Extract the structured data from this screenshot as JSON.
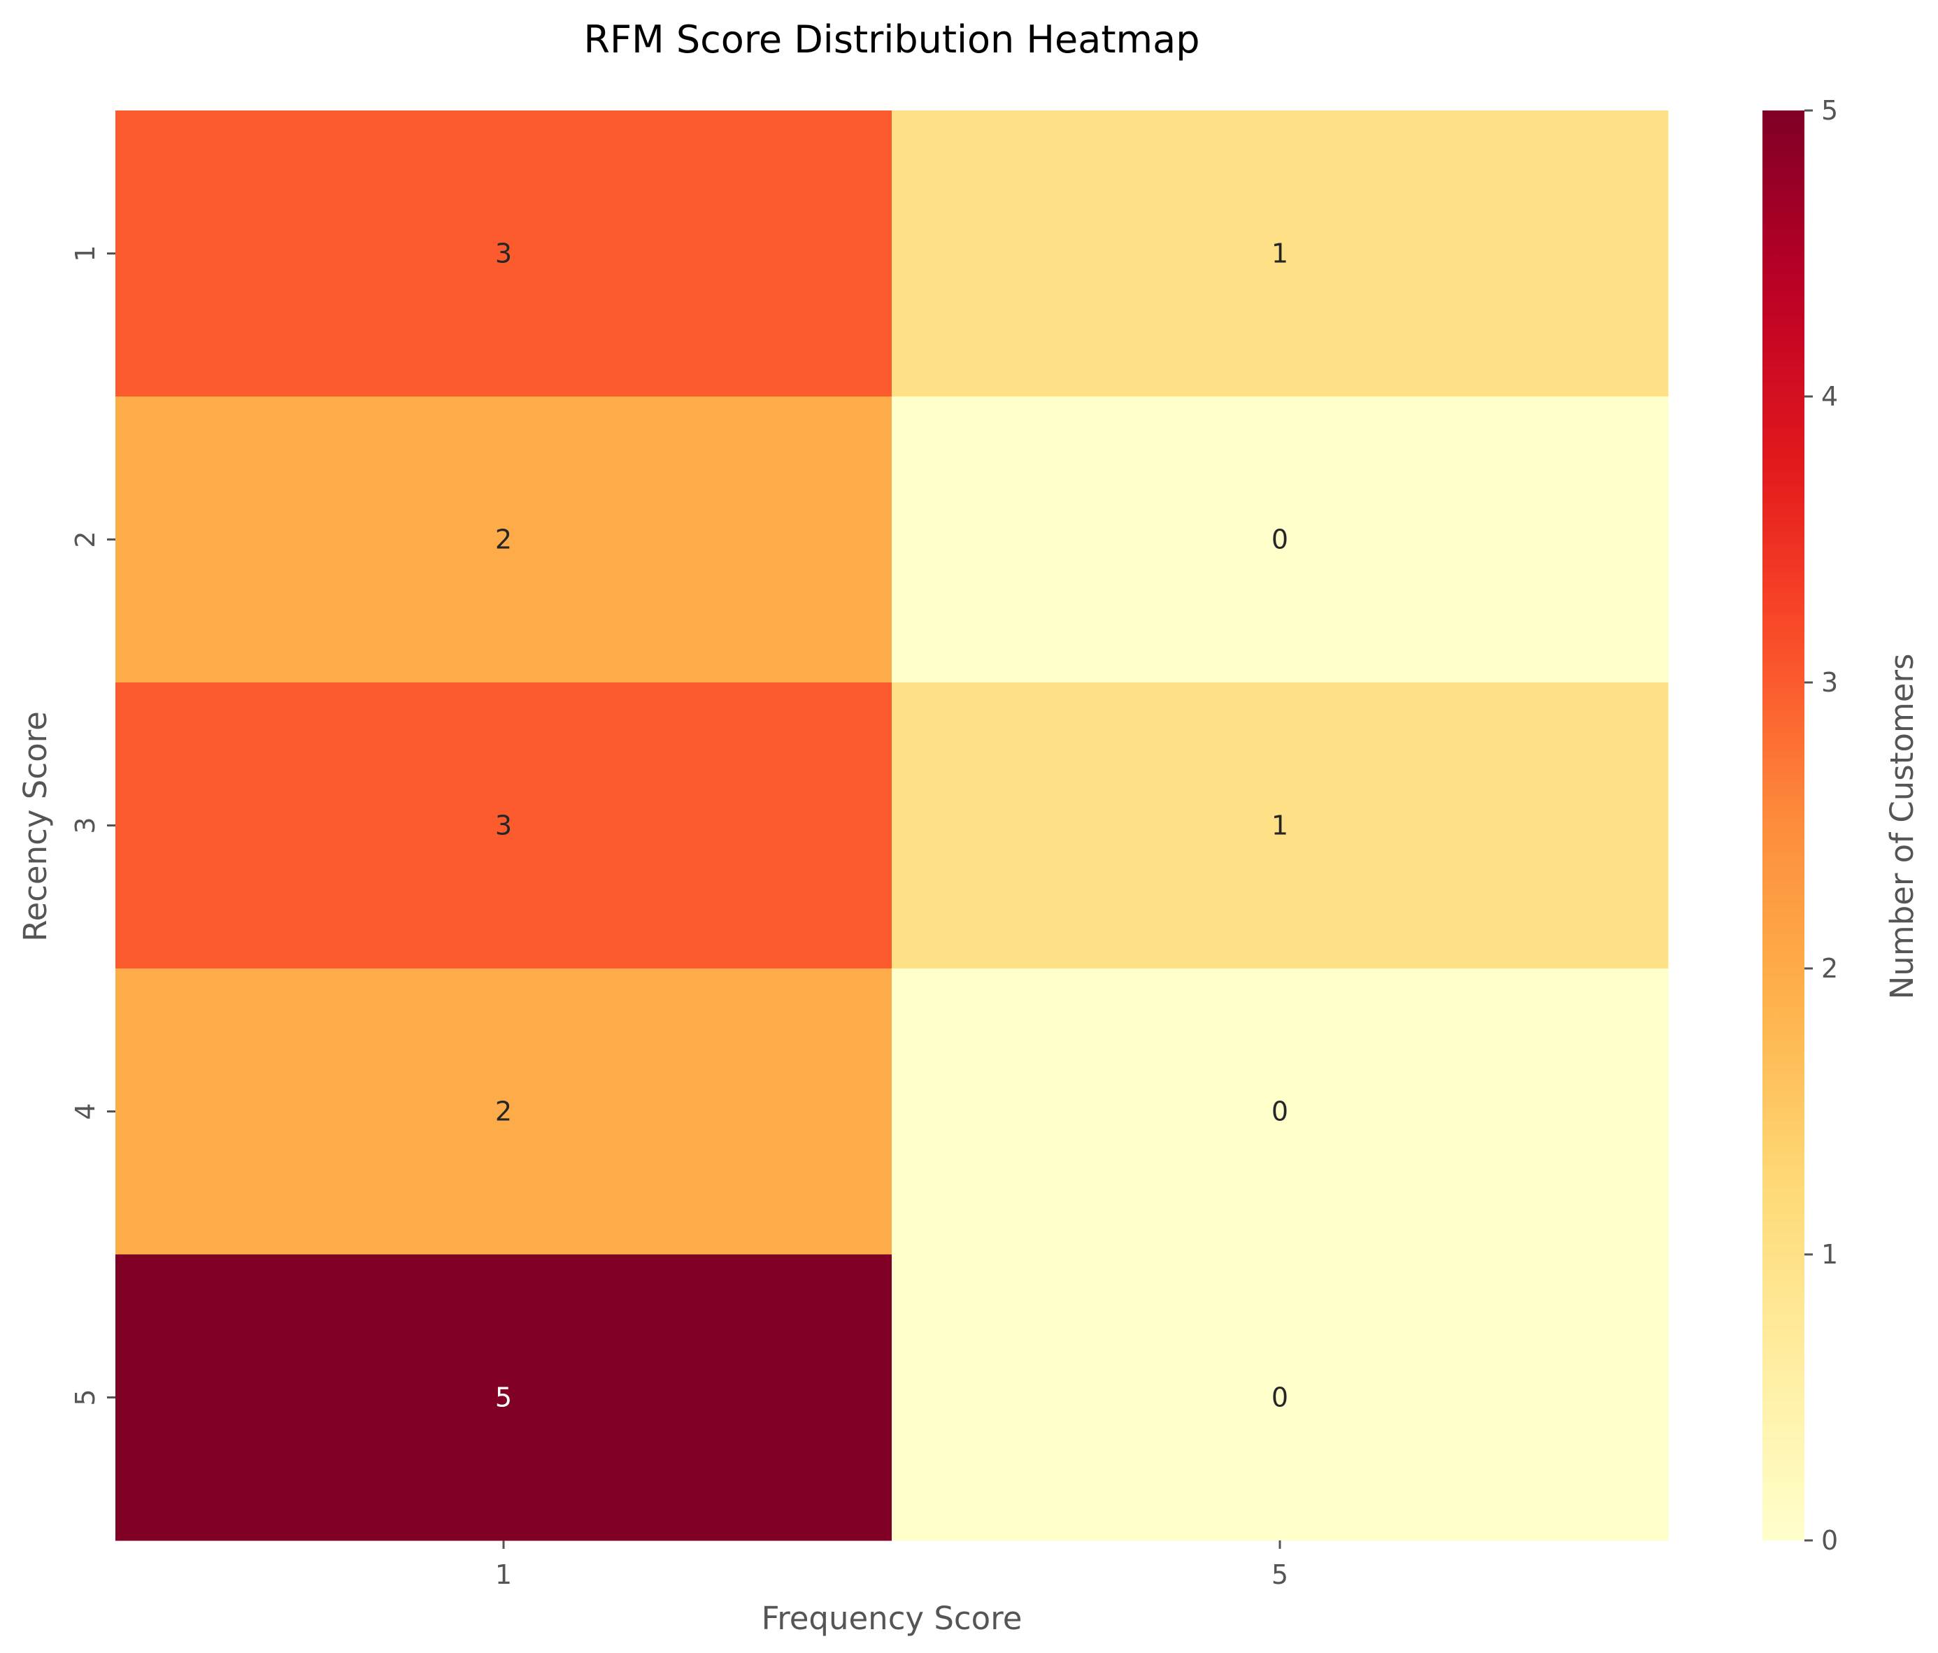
{
  "chart_data": {
    "type": "heatmap",
    "title": "RFM Score Distribution Heatmap",
    "xlabel": "Frequency Score",
    "ylabel": "Recency Score",
    "x_categories": [
      "1",
      "5"
    ],
    "y_categories": [
      "1",
      "2",
      "3",
      "4",
      "5"
    ],
    "values": [
      [
        3,
        1
      ],
      [
        2,
        0
      ],
      [
        3,
        1
      ],
      [
        2,
        0
      ],
      [
        5,
        0
      ]
    ],
    "colorbar": {
      "label": "Number of Customers",
      "range": [
        0,
        5
      ],
      "ticks": [
        0,
        1,
        2,
        3,
        4,
        5
      ],
      "colormap": "YlOrRd"
    },
    "grid": false
  }
}
